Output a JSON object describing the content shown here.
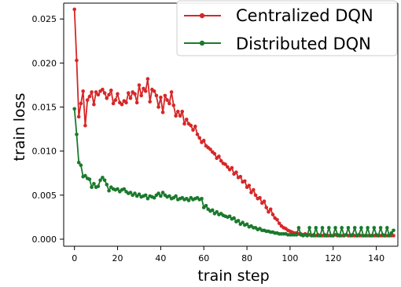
{
  "chart_data": {
    "type": "line",
    "xlabel": "train step",
    "ylabel": "train loss",
    "xlim": [
      -5,
      150
    ],
    "ylim": [
      -0.0008,
      0.0268
    ],
    "xticks": [
      0,
      20,
      40,
      60,
      80,
      100,
      120,
      140
    ],
    "yticks": [
      0.0,
      0.005,
      0.01,
      0.015,
      0.02,
      0.025
    ],
    "ytick_labels": [
      "0.000",
      "0.005",
      "0.010",
      "0.015",
      "0.020",
      "0.025"
    ],
    "legend_position": "top-right",
    "grid": false,
    "colors": {
      "centralized": "#d62728",
      "distributed": "#1a7a2c"
    },
    "series": [
      {
        "name": "Centralized DQN",
        "color": "#d62728",
        "x": [
          0,
          1,
          2,
          3,
          4,
          5,
          6,
          7,
          8,
          9,
          10,
          11,
          12,
          13,
          14,
          15,
          16,
          17,
          18,
          19,
          20,
          21,
          22,
          23,
          24,
          25,
          26,
          27,
          28,
          29,
          30,
          31,
          32,
          33,
          34,
          35,
          36,
          37,
          38,
          39,
          40,
          41,
          42,
          43,
          44,
          45,
          46,
          47,
          48,
          49,
          50,
          51,
          52,
          53,
          54,
          55,
          56,
          57,
          58,
          59,
          60,
          61,
          62,
          63,
          64,
          65,
          66,
          67,
          68,
          69,
          70,
          71,
          72,
          73,
          74,
          75,
          76,
          77,
          78,
          79,
          80,
          81,
          82,
          83,
          84,
          85,
          86,
          87,
          88,
          89,
          90,
          91,
          92,
          93,
          94,
          95,
          96,
          97,
          98,
          99,
          100,
          101,
          102,
          103,
          104,
          105,
          106,
          107,
          108,
          109,
          110,
          111,
          112,
          113,
          114,
          115,
          116,
          117,
          118,
          119,
          120,
          121,
          122,
          123,
          124,
          125,
          126,
          127,
          128,
          129,
          130,
          131,
          132,
          133,
          134,
          135,
          136,
          137,
          138,
          139,
          140,
          141,
          142,
          143,
          144,
          145,
          146,
          147,
          148
        ],
        "y": [
          0.0261,
          0.0203,
          0.0139,
          0.0154,
          0.0168,
          0.0129,
          0.0158,
          0.0162,
          0.0167,
          0.0153,
          0.0167,
          0.0164,
          0.0168,
          0.017,
          0.0166,
          0.016,
          0.0164,
          0.0169,
          0.0154,
          0.0158,
          0.0165,
          0.0155,
          0.0153,
          0.0157,
          0.0155,
          0.0166,
          0.016,
          0.0167,
          0.0165,
          0.0155,
          0.0175,
          0.0163,
          0.0171,
          0.0168,
          0.0182,
          0.0156,
          0.017,
          0.0168,
          0.0163,
          0.015,
          0.0161,
          0.0144,
          0.0163,
          0.0158,
          0.0154,
          0.0167,
          0.0152,
          0.014,
          0.0145,
          0.014,
          0.0145,
          0.0131,
          0.0136,
          0.0131,
          0.0129,
          0.0124,
          0.0128,
          0.0119,
          0.0115,
          0.011,
          0.0112,
          0.0106,
          0.0104,
          0.0102,
          0.0099,
          0.0097,
          0.0092,
          0.0094,
          0.0089,
          0.0086,
          0.0085,
          0.0082,
          0.0079,
          0.0081,
          0.0074,
          0.0076,
          0.007,
          0.0071,
          0.0065,
          0.0066,
          0.0059,
          0.0061,
          0.0053,
          0.0056,
          0.005,
          0.0046,
          0.0047,
          0.0041,
          0.0043,
          0.0036,
          0.0031,
          0.0034,
          0.0028,
          0.0024,
          0.0022,
          0.0018,
          0.0015,
          0.0013,
          0.0012,
          0.001,
          0.0009,
          0.0008,
          0.0007,
          0.0007,
          0.0006,
          0.0006,
          0.0005,
          0.0006,
          0.0005,
          0.0005,
          0.0004,
          0.0005,
          0.0004,
          0.0005,
          0.0004,
          0.0004,
          0.0005,
          0.0004,
          0.0004,
          0.0004,
          0.0004,
          0.0005,
          0.0004,
          0.0004,
          0.0004,
          0.0004,
          0.0005,
          0.0004,
          0.0004,
          0.0004,
          0.0004,
          0.0004,
          0.0004,
          0.0004,
          0.0004,
          0.0004,
          0.0004,
          0.0004,
          0.0004,
          0.0004,
          0.0004,
          0.0004,
          0.0004,
          0.0004,
          0.0004,
          0.0004,
          0.0004,
          0.0004,
          0.0004
        ]
      },
      {
        "name": "Distributed DQN",
        "color": "#1a7a2c",
        "x": [
          0,
          1,
          2,
          3,
          4,
          5,
          6,
          7,
          8,
          9,
          10,
          11,
          12,
          13,
          14,
          15,
          16,
          17,
          18,
          19,
          20,
          21,
          22,
          23,
          24,
          25,
          26,
          27,
          28,
          29,
          30,
          31,
          32,
          33,
          34,
          35,
          36,
          37,
          38,
          39,
          40,
          41,
          42,
          43,
          44,
          45,
          46,
          47,
          48,
          49,
          50,
          51,
          52,
          53,
          54,
          55,
          56,
          57,
          58,
          59,
          60,
          61,
          62,
          63,
          64,
          65,
          66,
          67,
          68,
          69,
          70,
          71,
          72,
          73,
          74,
          75,
          76,
          77,
          78,
          79,
          80,
          81,
          82,
          83,
          84,
          85,
          86,
          87,
          88,
          89,
          90,
          91,
          92,
          93,
          94,
          95,
          96,
          97,
          98,
          99,
          100,
          101,
          102,
          103,
          104,
          105,
          106,
          107,
          108,
          109,
          110,
          111,
          112,
          113,
          114,
          115,
          116,
          117,
          118,
          119,
          120,
          121,
          122,
          123,
          124,
          125,
          126,
          127,
          128,
          129,
          130,
          131,
          132,
          133,
          134,
          135,
          136,
          137,
          138,
          139,
          140,
          141,
          142,
          143,
          144,
          145,
          146,
          147,
          148
        ],
        "y": [
          0.0148,
          0.0119,
          0.0087,
          0.0084,
          0.0071,
          0.0072,
          0.0069,
          0.0068,
          0.0059,
          0.0063,
          0.0059,
          0.006,
          0.0067,
          0.007,
          0.0067,
          0.0062,
          0.0055,
          0.0059,
          0.0057,
          0.0056,
          0.0057,
          0.0054,
          0.0056,
          0.0057,
          0.0054,
          0.0052,
          0.0053,
          0.005,
          0.0052,
          0.0049,
          0.0051,
          0.0048,
          0.0049,
          0.005,
          0.0046,
          0.0049,
          0.0048,
          0.0047,
          0.005,
          0.0052,
          0.0049,
          0.0053,
          0.005,
          0.0048,
          0.0049,
          0.0046,
          0.0047,
          0.0049,
          0.0045,
          0.0046,
          0.0047,
          0.0045,
          0.0046,
          0.0044,
          0.0047,
          0.0045,
          0.0046,
          0.0047,
          0.0045,
          0.0046,
          0.0036,
          0.0038,
          0.0034,
          0.0032,
          0.0033,
          0.0029,
          0.0031,
          0.0028,
          0.0029,
          0.0027,
          0.0026,
          0.0025,
          0.0026,
          0.0023,
          0.0024,
          0.002,
          0.0021,
          0.0017,
          0.0019,
          0.0016,
          0.0017,
          0.0014,
          0.0015,
          0.0013,
          0.0013,
          0.0011,
          0.0012,
          0.001,
          0.001,
          0.0009,
          0.0009,
          0.0008,
          0.0008,
          0.0007,
          0.0007,
          0.0006,
          0.0006,
          0.0006,
          0.0006,
          0.0005,
          0.0005,
          0.0005,
          0.0005,
          0.0005,
          0.0013,
          0.0005,
          0.0004,
          0.0005,
          0.0004,
          0.0013,
          0.0004,
          0.0004,
          0.0013,
          0.0004,
          0.0004,
          0.0013,
          0.0004,
          0.0004,
          0.0013,
          0.0004,
          0.0004,
          0.0013,
          0.0005,
          0.0004,
          0.0013,
          0.0004,
          0.0005,
          0.0013,
          0.0004,
          0.0005,
          0.0013,
          0.0004,
          0.0005,
          0.0013,
          0.0004,
          0.0004,
          0.0013,
          0.0004,
          0.0004,
          0.0013,
          0.0005,
          0.0004,
          0.0013,
          0.0005,
          0.0004,
          0.0013,
          0.0004,
          0.0007,
          0.001
        ]
      }
    ]
  }
}
